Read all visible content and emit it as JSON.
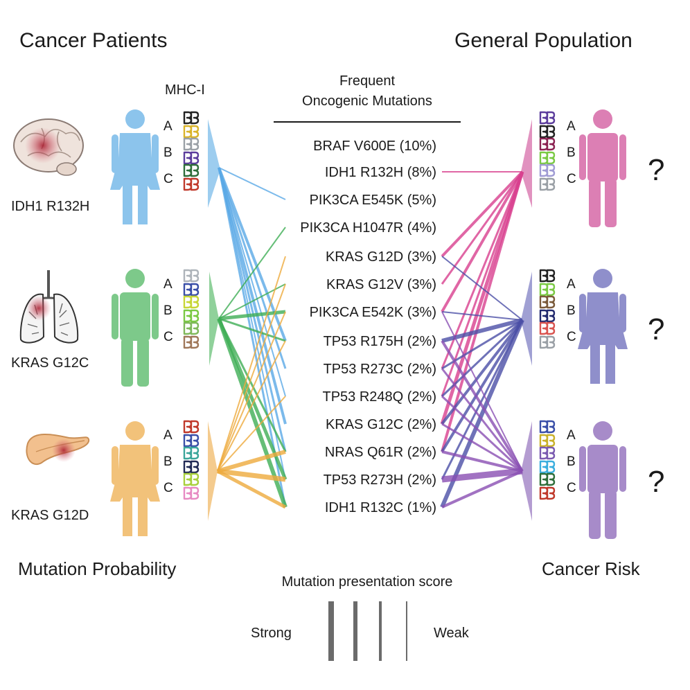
{
  "headers": {
    "left_title": "Cancer Patients",
    "right_title": "General Population",
    "mhc_label": "MHC-I",
    "center_title_line1": "Frequent",
    "center_title_line2": "Oncogenic Mutations",
    "bottom_left": "Mutation Probability",
    "bottom_right": "Cancer Risk"
  },
  "mutations": [
    {
      "label": "BRAF V600E (10%)"
    },
    {
      "label": "IDH1 R132H (8%)"
    },
    {
      "label": "PIK3CA E545K (5%)"
    },
    {
      "label": "PIK3CA H1047R (4%)"
    },
    {
      "label": "KRAS G12D (3%)"
    },
    {
      "label": "KRAS G12V (3%)"
    },
    {
      "label": "PIK3CA E542K (3%)"
    },
    {
      "label": "TP53 R175H (2%)"
    },
    {
      "label": "TP53 R273C (2%)"
    },
    {
      "label": "TP53 R248Q (2%)"
    },
    {
      "label": "KRAS G12C (2%)"
    },
    {
      "label": "NRAS Q61R (2%)"
    },
    {
      "label": "TP53 R273H (2%)"
    },
    {
      "label": "IDH1 R132C (1%)"
    }
  ],
  "patients": [
    {
      "organ": "brain-icon",
      "mutation": "IDH1 R132H",
      "person": "female",
      "color": "#8cc4ec",
      "alleles": [
        "A",
        "B",
        "C"
      ],
      "allele_colors": [
        "#222222",
        "#d9b42a",
        "#9aa0a6",
        "#5b3c9c",
        "#2e6e3a",
        "#c0392b"
      ]
    },
    {
      "organ": "lungs-icon",
      "mutation": "KRAS G12C",
      "person": "male",
      "color": "#7dc98a",
      "alleles": [
        "A",
        "B",
        "C"
      ],
      "allele_colors": [
        "#aeb4ba",
        "#3a4fa8",
        "#c7d636",
        "#7ac943",
        "#7fb85a",
        "#a0785a"
      ]
    },
    {
      "organ": "pancreas-icon",
      "mutation": "KRAS G12D",
      "person": "female",
      "color": "#f2c27a",
      "alleles": [
        "A",
        "B",
        "C"
      ],
      "allele_colors": [
        "#c0392b",
        "#3a4fa8",
        "#3aa59a",
        "#222a55",
        "#a8cf3c",
        "#e78ac3"
      ]
    }
  ],
  "population": [
    {
      "person": "male",
      "color": "#dc7fb4",
      "question": "?",
      "alleles": [
        "A",
        "B",
        "C"
      ],
      "allele_colors": [
        "#5b3c9c",
        "#222222",
        "#8b2252",
        "#7ac943",
        "#a09cd4",
        "#9aa0a6"
      ]
    },
    {
      "person": "female",
      "color": "#8f8fcb",
      "question": "?",
      "alleles": [
        "A",
        "B",
        "C"
      ],
      "allele_colors": [
        "#222222",
        "#7ac943",
        "#7a5a3a",
        "#222a6e",
        "#d9534f",
        "#9aa0a6"
      ]
    },
    {
      "person": "male",
      "color": "#a78bc9",
      "question": "?",
      "alleles": [
        "A",
        "B",
        "C"
      ],
      "allele_colors": [
        "#3a4fa8",
        "#c9b12a",
        "#7a5ab0",
        "#3aaede",
        "#2e6e3a",
        "#c0392b"
      ]
    }
  ],
  "legend": {
    "title": "Mutation presentation score",
    "strong": "Strong",
    "weak": "Weak"
  },
  "connections": {
    "patient_blue": "#5aa9e6",
    "patient_green": "#3fae55",
    "patient_orange": "#eeaa3c",
    "pop_pink": "#d8408f",
    "pop_indigo": "#4b4fa6",
    "pop_purple": "#8a4fb3"
  }
}
